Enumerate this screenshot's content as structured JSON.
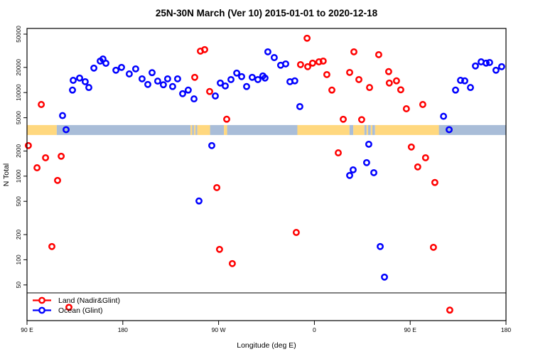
{
  "title": "25N-30N March (Ver 10)   2015-01-01 to 2020-12-18",
  "axes": {
    "y": {
      "label": "N Total",
      "ticks": [
        50000,
        20000,
        10000,
        5000,
        2000,
        1000,
        500,
        200,
        100,
        50
      ]
    },
    "x": {
      "label": "Longitude (deg E)",
      "ticks": [
        {
          "lon": 90,
          "label": "90 E"
        },
        {
          "lon": 180,
          "label": "180"
        },
        {
          "lon": 270,
          "label": "90 W"
        },
        {
          "lon": 360,
          "label": "0"
        },
        {
          "lon": 450,
          "label": "90 E"
        },
        {
          "lon": 540,
          "label": "180"
        }
      ]
    }
  },
  "legend": {
    "items": [
      {
        "label": "Land (Nadir&Glint)",
        "color": "#ff0000"
      },
      {
        "label": "Ocean (Glint)",
        "color": "#0000ff"
      }
    ]
  },
  "chart_data": {
    "type": "scatter",
    "title": "25N-30N March (Ver 10)   2015-01-01 to 2020-12-18",
    "xlabel": "Longitude (deg E)",
    "ylabel": "N Total",
    "y_log_scale": true,
    "ylim": [
      18,
      58000
    ],
    "xlim_deg_east": [
      90,
      540
    ],
    "x_axis_note": "longitude wraps eastward: 90E, 180, 90W(=270), 0(=360), 90E(=450), 180(=540)",
    "grid": false,
    "legend_position": "bottom-left full-width box",
    "series": [
      {
        "name": "Land (Nadir&Glint)",
        "color": "#ff0000",
        "points": [
          [
            91.3,
            2320
          ],
          [
            99.4,
            1260
          ],
          [
            103.4,
            7200
          ],
          [
            107.4,
            1660
          ],
          [
            113.4,
            144
          ],
          [
            118.7,
            890
          ],
          [
            122.1,
            1730
          ],
          [
            129.4,
            27
          ],
          [
            247.6,
            15200
          ],
          [
            252.9,
            31300
          ],
          [
            256.9,
            32600
          ],
          [
            261.6,
            10300
          ],
          [
            268.3,
            730
          ],
          [
            270.9,
            133
          ],
          [
            277.6,
            4800
          ],
          [
            282.9,
            90
          ],
          [
            343.0,
            212
          ],
          [
            347.0,
            21600
          ],
          [
            353.1,
            44600
          ],
          [
            353.7,
            20400
          ],
          [
            358.3,
            22500
          ],
          [
            364.3,
            23300
          ],
          [
            368.3,
            23800
          ],
          [
            371.7,
            16400
          ],
          [
            376.4,
            10700
          ],
          [
            382.4,
            1900
          ],
          [
            387.1,
            4790
          ],
          [
            393.1,
            17400
          ],
          [
            397.1,
            30700
          ],
          [
            401.8,
            14300
          ],
          [
            404.4,
            4740
          ],
          [
            411.8,
            11500
          ],
          [
            420.4,
            28400
          ],
          [
            429.8,
            17800
          ],
          [
            430.4,
            13000
          ],
          [
            437.1,
            13800
          ],
          [
            441.1,
            10800
          ],
          [
            446.4,
            6400
          ],
          [
            451.1,
            2230
          ],
          [
            457.1,
            1290
          ],
          [
            461.8,
            7200
          ],
          [
            464.4,
            1660
          ],
          [
            471.8,
            141
          ],
          [
            473.2,
            840
          ],
          [
            487.2,
            25
          ]
        ]
      },
      {
        "name": "Ocean (Glint)",
        "color": "#0000ff",
        "points": [
          [
            123.4,
            5300
          ],
          [
            126.7,
            3600
          ],
          [
            132.7,
            10700
          ],
          [
            133.4,
            14000
          ],
          [
            139.4,
            14900
          ],
          [
            144.7,
            13500
          ],
          [
            148.1,
            11500
          ],
          [
            152.8,
            19600
          ],
          [
            158.8,
            23800
          ],
          [
            161.4,
            25200
          ],
          [
            164.1,
            22400
          ],
          [
            173.5,
            18500
          ],
          [
            178.8,
            20000
          ],
          [
            186.1,
            16700
          ],
          [
            192.1,
            19200
          ],
          [
            198.1,
            14600
          ],
          [
            203.5,
            12500
          ],
          [
            207.5,
            17300
          ],
          [
            212.8,
            13700
          ],
          [
            218.1,
            12400
          ],
          [
            222.1,
            14600
          ],
          [
            226.8,
            11800
          ],
          [
            231.5,
            14600
          ],
          [
            236.2,
            9700
          ],
          [
            241.5,
            10700
          ],
          [
            246.9,
            8400
          ],
          [
            251.6,
            505
          ],
          [
            263.6,
            2320
          ],
          [
            266.9,
            9100
          ],
          [
            271.6,
            13000
          ],
          [
            276.3,
            12000
          ],
          [
            281.6,
            14300
          ],
          [
            287.0,
            17100
          ],
          [
            291.6,
            15500
          ],
          [
            296.3,
            11800
          ],
          [
            301.6,
            15200
          ],
          [
            306.9,
            14300
          ],
          [
            311.6,
            15800
          ],
          [
            313.6,
            14900
          ],
          [
            316.3,
            30700
          ],
          [
            322.3,
            26200
          ],
          [
            328.3,
            21200
          ],
          [
            333.0,
            22000
          ],
          [
            337.0,
            13500
          ],
          [
            341.6,
            13800
          ],
          [
            346.3,
            6800
          ],
          [
            393.1,
            1020
          ],
          [
            396.4,
            1190
          ],
          [
            409.1,
            1450
          ],
          [
            411.1,
            2410
          ],
          [
            415.8,
            1100
          ],
          [
            421.8,
            144
          ],
          [
            425.8,
            62
          ],
          [
            481.3,
            5200
          ],
          [
            486.6,
            3600
          ],
          [
            492.6,
            10700
          ],
          [
            497.3,
            14000
          ],
          [
            501.3,
            13800
          ],
          [
            506.6,
            11500
          ],
          [
            511.3,
            20800
          ],
          [
            516.6,
            23300
          ],
          [
            521.3,
            22500
          ],
          [
            524.6,
            22900
          ],
          [
            530.6,
            18500
          ],
          [
            535.9,
            20400
          ]
        ]
      }
    ],
    "surface_band": {
      "description": "land/ocean strip vs longitude drawn across plot",
      "y_range": [
        3110,
        4090
      ],
      "land_color": "#ffd87f",
      "ocean_color": "#a9bdd8",
      "segments": [
        [
          90,
          118,
          "land"
        ],
        [
          118,
          243.6,
          "ocean"
        ],
        [
          243.6,
          245.2,
          "land"
        ],
        [
          245.2,
          246.8,
          "ocean"
        ],
        [
          246.8,
          248.4,
          "land"
        ],
        [
          248.4,
          250,
          "ocean"
        ],
        [
          250,
          262,
          "land"
        ],
        [
          262,
          275,
          "ocean"
        ],
        [
          275,
          278,
          "land"
        ],
        [
          278,
          344,
          "ocean"
        ],
        [
          344,
          393,
          "land"
        ],
        [
          393,
          396.5,
          "ocean"
        ],
        [
          396.5,
          407,
          "land"
        ],
        [
          407,
          409,
          "ocean"
        ],
        [
          409,
          410.5,
          "land"
        ],
        [
          410.5,
          413,
          "ocean"
        ],
        [
          413,
          414.5,
          "land"
        ],
        [
          414.5,
          417,
          "ocean"
        ],
        [
          417,
          477,
          "land"
        ],
        [
          477,
          540,
          "ocean"
        ]
      ]
    }
  }
}
